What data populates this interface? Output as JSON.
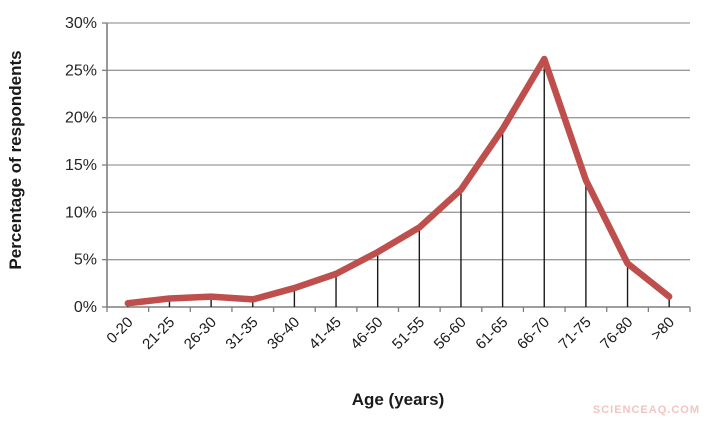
{
  "chart_data": {
    "type": "line",
    "title": "",
    "xlabel": "Age (years)",
    "ylabel": "Percentage of respondents",
    "categories": [
      "0-20",
      "21-25",
      "26-30",
      "31-35",
      "36-40",
      "41-45",
      "46-50",
      "51-55",
      "56-60",
      "61-65",
      "66-70",
      "71-75",
      "76-80",
      ">80"
    ],
    "values": [
      0.4,
      0.9,
      1.1,
      0.8,
      2.0,
      3.5,
      5.8,
      8.4,
      12.4,
      18.8,
      26.2,
      13.4,
      4.6,
      1.1
    ],
    "ylim": [
      0,
      30
    ],
    "ytick_step": 5,
    "ytick_labels": [
      "0%",
      "5%",
      "10%",
      "15%",
      "20%",
      "25%",
      "30%"
    ],
    "grid": "horizontal-only",
    "legend_position": "none",
    "drop_lines": true,
    "colors": {
      "line": "#bf4f4c",
      "gridline": "#9a9a9a",
      "axis": "#7f7f7f",
      "drop_line": "#1a1a1a",
      "tick_text": "#262626",
      "watermark": "#f1c5c3"
    }
  },
  "watermark": {
    "text": "SCIENCEAQ.COM"
  }
}
